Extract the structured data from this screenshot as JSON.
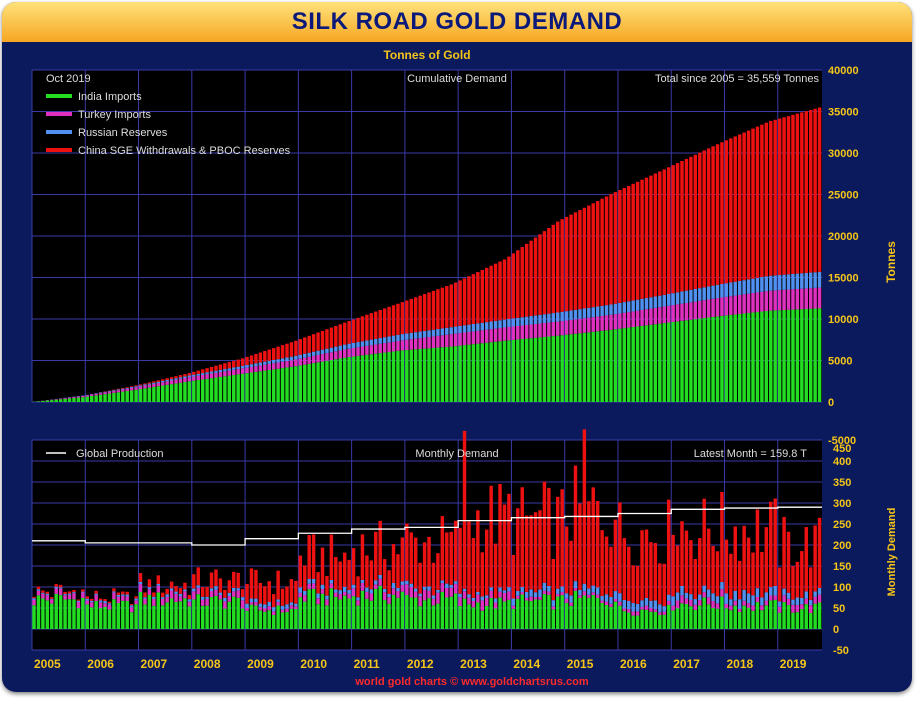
{
  "chart_data": [
    {
      "type": "bar",
      "stacked": true,
      "title": "SILK ROAD GOLD DEMAND",
      "subtitle": "Tonnes of Gold",
      "panel_label": "Cumulative Demand",
      "date_label": "Oct 2019",
      "total_label": "Total since 2005 = 35,559 Tonnes",
      "ylabel": "Tonnes",
      "ylim": [
        0,
        40000
      ],
      "yticks": [
        "40000",
        "35000",
        "30000",
        "25000",
        "20000",
        "15000",
        "10000",
        "5000",
        "0"
      ],
      "x": [
        "2005",
        "2006",
        "2007",
        "2008",
        "2009",
        "2010",
        "2011",
        "2012",
        "2013",
        "2014",
        "2015",
        "2016",
        "2017",
        "2018",
        "2019",
        "Oct 2019"
      ],
      "series": [
        {
          "name": "India Imports",
          "color": "#22dd22",
          "values": [
            0,
            600,
            1500,
            2500,
            3400,
            4300,
            5400,
            6200,
            6700,
            7400,
            8000,
            8700,
            9500,
            10300,
            11000,
            11300
          ]
        },
        {
          "name": "Turkey Imports",
          "color": "#e030c0",
          "values": [
            0,
            150,
            300,
            500,
            650,
            800,
            1000,
            1200,
            1500,
            1600,
            1700,
            1800,
            2000,
            2200,
            2400,
            2500
          ]
        },
        {
          "name": "Russian Reserves",
          "color": "#5090f0",
          "values": [
            0,
            50,
            120,
            200,
            300,
            450,
            600,
            750,
            850,
            950,
            1100,
            1250,
            1400,
            1600,
            1800,
            1900
          ]
        },
        {
          "name": "China SGE Withdrawals & PBOC Reserves",
          "color": "#ee1111",
          "values": [
            0,
            0,
            100,
            300,
            900,
            1800,
            2700,
            3800,
            5200,
            7300,
            11000,
            13300,
            15100,
            16900,
            18600,
            19859
          ]
        }
      ]
    },
    {
      "type": "bar",
      "stacked": true,
      "panel_label": "Monthly Demand",
      "latest_label": "Latest Month = 159.8 T",
      "ylabel": "Monthly Demand",
      "ylim": [
        -50,
        450
      ],
      "yticks": [
        "450",
        "400",
        "350",
        "300",
        "250",
        "200",
        "150",
        "100",
        "50",
        "0",
        "-50"
      ],
      "overlap_tick": "-5000",
      "production_label": "Global Production",
      "production_line": [
        {
          "year": 2005,
          "value": 210
        },
        {
          "year": 2006,
          "value": 205
        },
        {
          "year": 2007,
          "value": 205
        },
        {
          "year": 2008,
          "value": 200
        },
        {
          "year": 2009,
          "value": 215
        },
        {
          "year": 2010,
          "value": 228
        },
        {
          "year": 2011,
          "value": 238
        },
        {
          "year": 2012,
          "value": 242
        },
        {
          "year": 2013,
          "value": 258
        },
        {
          "year": 2014,
          "value": 265
        },
        {
          "year": 2015,
          "value": 268
        },
        {
          "year": 2016,
          "value": 275
        },
        {
          "year": 2017,
          "value": 285
        },
        {
          "year": 2018,
          "value": 288
        },
        {
          "year": 2019,
          "value": 290
        }
      ],
      "yearly_avg": [
        {
          "year": 2005,
          "india": 70,
          "turkey": 12,
          "russia": 3,
          "china": 5
        },
        {
          "year": 2006,
          "india": 55,
          "turkey": 12,
          "russia": 4,
          "china": 5
        },
        {
          "year": 2007,
          "india": 70,
          "turkey": 15,
          "russia": 5,
          "china": 15
        },
        {
          "year": 2008,
          "india": 65,
          "turkey": 15,
          "russia": 7,
          "china": 30
        },
        {
          "year": 2009,
          "india": 45,
          "turkey": 8,
          "russia": 8,
          "china": 50
        },
        {
          "year": 2010,
          "india": 75,
          "turkey": 12,
          "russia": 10,
          "china": 75
        },
        {
          "year": 2011,
          "india": 80,
          "turkey": 15,
          "russia": 10,
          "china": 90
        },
        {
          "year": 2012,
          "india": 70,
          "turkey": 20,
          "russia": 8,
          "china": 110
        },
        {
          "year": 2013,
          "india": 60,
          "turkey": 20,
          "russia": 8,
          "china": 180
        },
        {
          "year": 2014,
          "india": 65,
          "turkey": 8,
          "russia": 15,
          "china": 170
        },
        {
          "year": 2015,
          "india": 70,
          "turkey": 8,
          "russia": 15,
          "china": 190
        },
        {
          "year": 2016,
          "india": 45,
          "turkey": 8,
          "russia": 17,
          "china": 160
        },
        {
          "year": 2017,
          "india": 60,
          "turkey": 15,
          "russia": 18,
          "china": 150
        },
        {
          "year": 2018,
          "india": 55,
          "turkey": 10,
          "russia": 20,
          "china": 150
        },
        {
          "year": 2019,
          "india": 50,
          "turkey": 15,
          "russia": 15,
          "china": 120
        }
      ],
      "x_ticks": [
        "2005",
        "2006",
        "2007",
        "2008",
        "2009",
        "2010",
        "2011",
        "2012",
        "2013",
        "2014",
        "2015",
        "2016",
        "2017",
        "2018",
        "2019"
      ]
    }
  ],
  "footer": {
    "credit": "world gold charts © www.goldchartsrus.com"
  },
  "colors": {
    "background": "#0a1a5c",
    "plot": "#000000",
    "grid": "#3a3aa8",
    "axis_text": "#f5c518",
    "title": "#0b1a7a"
  }
}
